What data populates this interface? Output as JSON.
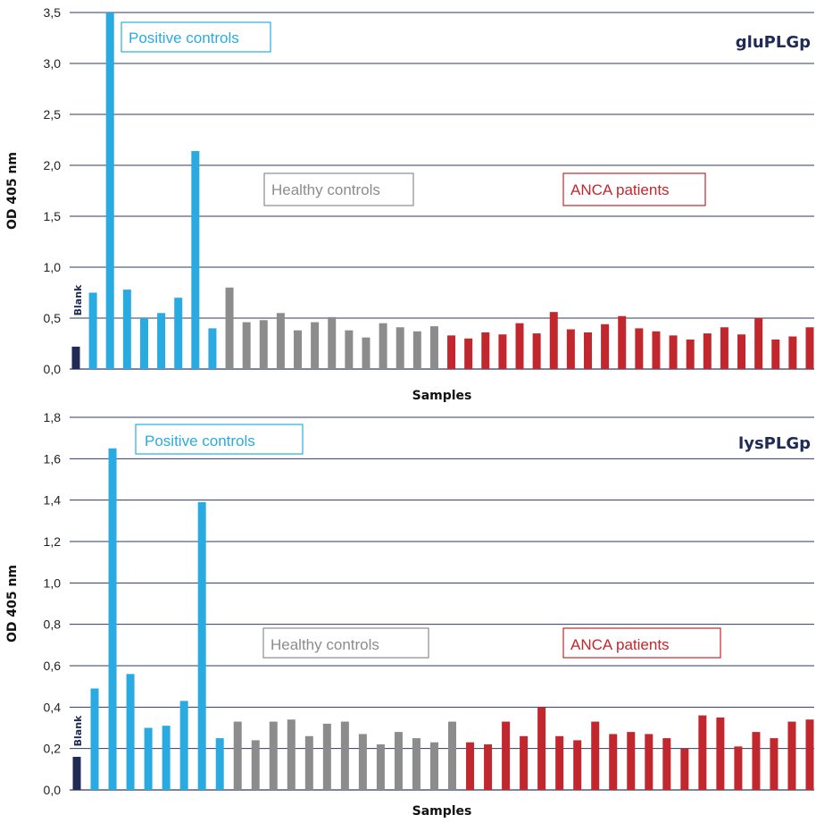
{
  "colors": {
    "blank": "#1f2a55",
    "positive": "#29abe2",
    "healthy": "#8c8c8c",
    "anca": "#c1272d",
    "grid": "#2e3a66"
  },
  "chart_data": [
    {
      "type": "bar",
      "title": "gluPLGp",
      "xlabel": "Samples",
      "ylabel": "OD 405 nm",
      "ylim": [
        0,
        3.5
      ],
      "yticks": [
        "0,0",
        "0,5",
        "1,0",
        "1,5",
        "2,0",
        "2,5",
        "3,0",
        "3,5"
      ],
      "ytick_values": [
        0,
        0.5,
        1.0,
        1.5,
        2.0,
        2.5,
        3.0,
        3.5
      ],
      "grid": true,
      "blank_label": "Blank",
      "annotations": [
        {
          "text": "Positive controls",
          "group": "positive"
        },
        {
          "text": "Healthy controls",
          "group": "healthy"
        },
        {
          "text": "ANCA patients",
          "group": "anca"
        }
      ],
      "groups": [
        {
          "group": "blank",
          "values": [
            0.22
          ]
        },
        {
          "group": "positive",
          "values": [
            0.75,
            3.5,
            0.78,
            0.5,
            0.55,
            0.7,
            2.14,
            0.4
          ]
        },
        {
          "group": "healthy",
          "values": [
            0.8,
            0.46,
            0.48,
            0.55,
            0.38,
            0.46,
            0.51,
            0.38,
            0.31,
            0.45,
            0.41,
            0.37,
            0.42
          ]
        },
        {
          "group": "anca",
          "values": [
            0.33,
            0.3,
            0.36,
            0.34,
            0.45,
            0.35,
            0.56,
            0.39,
            0.36,
            0.44,
            0.52,
            0.4,
            0.37,
            0.33,
            0.29,
            0.35,
            0.41,
            0.34,
            0.5,
            0.29,
            0.32,
            0.41
          ]
        }
      ]
    },
    {
      "type": "bar",
      "title": "lysPLGp",
      "xlabel": "Samples",
      "ylabel": "OD 405 nm",
      "ylim": [
        0,
        1.8
      ],
      "yticks": [
        "0,0",
        "0,2",
        "0,4",
        "0,6",
        "0,8",
        "1,0",
        "1,2",
        "1,4",
        "1,6",
        "1,8"
      ],
      "ytick_values": [
        0,
        0.2,
        0.4,
        0.6,
        0.8,
        1.0,
        1.2,
        1.4,
        1.6,
        1.8
      ],
      "grid": true,
      "blank_label": "Blank",
      "annotations": [
        {
          "text": "Positive controls",
          "group": "positive"
        },
        {
          "text": "Healthy controls",
          "group": "healthy"
        },
        {
          "text": "ANCA patients",
          "group": "anca"
        }
      ],
      "groups": [
        {
          "group": "blank",
          "values": [
            0.16
          ]
        },
        {
          "group": "positive",
          "values": [
            0.49,
            1.65,
            0.56,
            0.3,
            0.31,
            0.43,
            1.39,
            0.25
          ]
        },
        {
          "group": "healthy",
          "values": [
            0.33,
            0.24,
            0.33,
            0.34,
            0.26,
            0.32,
            0.33,
            0.27,
            0.22,
            0.28,
            0.25,
            0.23,
            0.33
          ]
        },
        {
          "group": "anca",
          "values": [
            0.23,
            0.22,
            0.33,
            0.26,
            0.4,
            0.26,
            0.24,
            0.33,
            0.27,
            0.28,
            0.27,
            0.25,
            0.2,
            0.36,
            0.35,
            0.21,
            0.28,
            0.25,
            0.33,
            0.34
          ]
        }
      ]
    }
  ]
}
